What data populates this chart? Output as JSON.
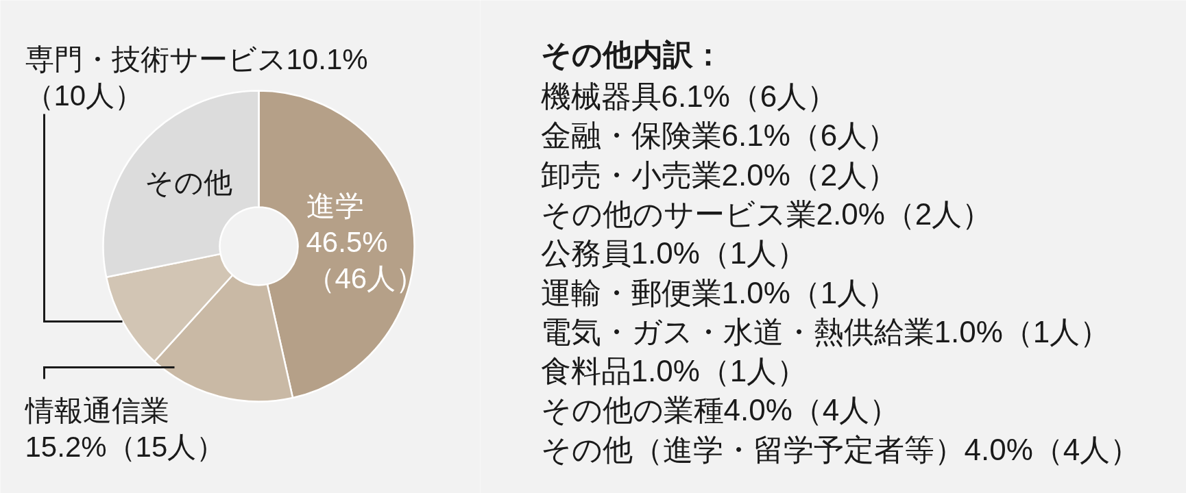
{
  "chart_data": [
    {
      "type": "donut",
      "categories": [
        "進学",
        "情報通信業",
        "専門・技術サービス",
        "その他"
      ],
      "values": [
        46.5,
        15.2,
        10.1,
        28.2
      ],
      "colors": [
        "#b5a088",
        "#c9b9a5",
        "#d2c5b4",
        "#dcdcdc"
      ],
      "value_labels": [
        "46.5%\n（46人）",
        "15.2%（15人）",
        "10.1%\n（10人）",
        null
      ]
    },
    {
      "type": "other",
      "title": "その他内訳：",
      "annotations": [
        "機械器具6.1%（6人）",
        "金融・保険業6.1%（6人）",
        "卸売・小売業2.0%（2人）",
        "その他のサービス業2.0%（2人）",
        "公務員1.0%（1人）",
        "運輸・郵便業1.0%（1人）",
        "電気・ガス・水道・熱供給業1.0%（1人）",
        "食料品1.0%（1人）",
        "その他の業種4.0%（4人）",
        "その他（進学・留学予定者等）4.0%（4人）"
      ]
    }
  ]
}
